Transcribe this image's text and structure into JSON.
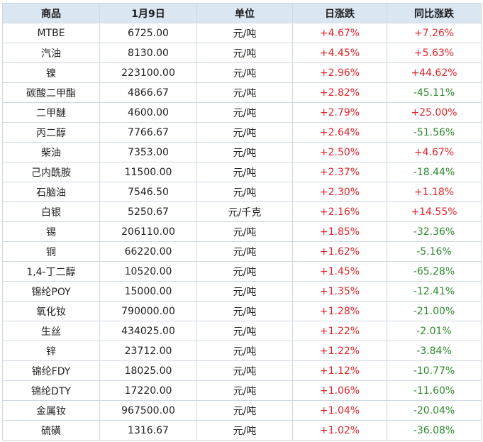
{
  "headers": [
    "商品",
    "1月9日",
    "单位",
    "日涨跌",
    "同比涨跌"
  ],
  "colors": {
    "up": "#e0252b",
    "down": "#2f8a2f",
    "header_bg": "#dbe6f3",
    "border": "#cfd8e3"
  },
  "rows": [
    {
      "name": "MTBE",
      "price": "6725.00",
      "unit": "元/吨",
      "daily": "+4.67%",
      "yoy": "+7.26%"
    },
    {
      "name": "汽油",
      "price": "8130.00",
      "unit": "元/吨",
      "daily": "+4.45%",
      "yoy": "+5.63%"
    },
    {
      "name": "镍",
      "price": "223100.00",
      "unit": "元/吨",
      "daily": "+2.96%",
      "yoy": "+44.62%"
    },
    {
      "name": "碳酸二甲酯",
      "price": "4866.67",
      "unit": "元/吨",
      "daily": "+2.82%",
      "yoy": "-45.11%"
    },
    {
      "name": "二甲醚",
      "price": "4600.00",
      "unit": "元/吨",
      "daily": "+2.79%",
      "yoy": "+25.00%"
    },
    {
      "name": "丙二醇",
      "price": "7766.67",
      "unit": "元/吨",
      "daily": "+2.64%",
      "yoy": "-51.56%"
    },
    {
      "name": "柴油",
      "price": "7353.00",
      "unit": "元/吨",
      "daily": "+2.50%",
      "yoy": "+4.67%"
    },
    {
      "name": "己内酰胺",
      "price": "11500.00",
      "unit": "元/吨",
      "daily": "+2.37%",
      "yoy": "-18.44%"
    },
    {
      "name": "石脑油",
      "price": "7546.50",
      "unit": "元/吨",
      "daily": "+2.30%",
      "yoy": "+1.18%"
    },
    {
      "name": "白银",
      "price": "5250.67",
      "unit": "元/千克",
      "daily": "+2.16%",
      "yoy": "+14.55%"
    },
    {
      "name": "锡",
      "price": "206110.00",
      "unit": "元/吨",
      "daily": "+1.85%",
      "yoy": "-32.36%"
    },
    {
      "name": "铜",
      "price": "66220.00",
      "unit": "元/吨",
      "daily": "+1.62%",
      "yoy": "-5.16%"
    },
    {
      "name": "1,4-丁二醇",
      "price": "10520.00",
      "unit": "元/吨",
      "daily": "+1.45%",
      "yoy": "-65.28%"
    },
    {
      "name": "锦纶POY",
      "price": "15000.00",
      "unit": "元/吨",
      "daily": "+1.35%",
      "yoy": "-12.41%"
    },
    {
      "name": "氧化钕",
      "price": "790000.00",
      "unit": "元/吨",
      "daily": "+1.28%",
      "yoy": "-21.00%"
    },
    {
      "name": "生丝",
      "price": "434025.00",
      "unit": "元/吨",
      "daily": "+1.22%",
      "yoy": "-2.01%"
    },
    {
      "name": "锌",
      "price": "23712.00",
      "unit": "元/吨",
      "daily": "+1.22%",
      "yoy": "-3.84%"
    },
    {
      "name": "锦纶FDY",
      "price": "18025.00",
      "unit": "元/吨",
      "daily": "+1.12%",
      "yoy": "-10.77%"
    },
    {
      "name": "锦纶DTY",
      "price": "17220.00",
      "unit": "元/吨",
      "daily": "+1.06%",
      "yoy": "-11.60%"
    },
    {
      "name": "金属钕",
      "price": "967500.00",
      "unit": "元/吨",
      "daily": "+1.04%",
      "yoy": "-20.04%"
    },
    {
      "name": "硫磺",
      "price": "1316.67",
      "unit": "元/吨",
      "daily": "+1.02%",
      "yoy": "-36.08%"
    }
  ]
}
